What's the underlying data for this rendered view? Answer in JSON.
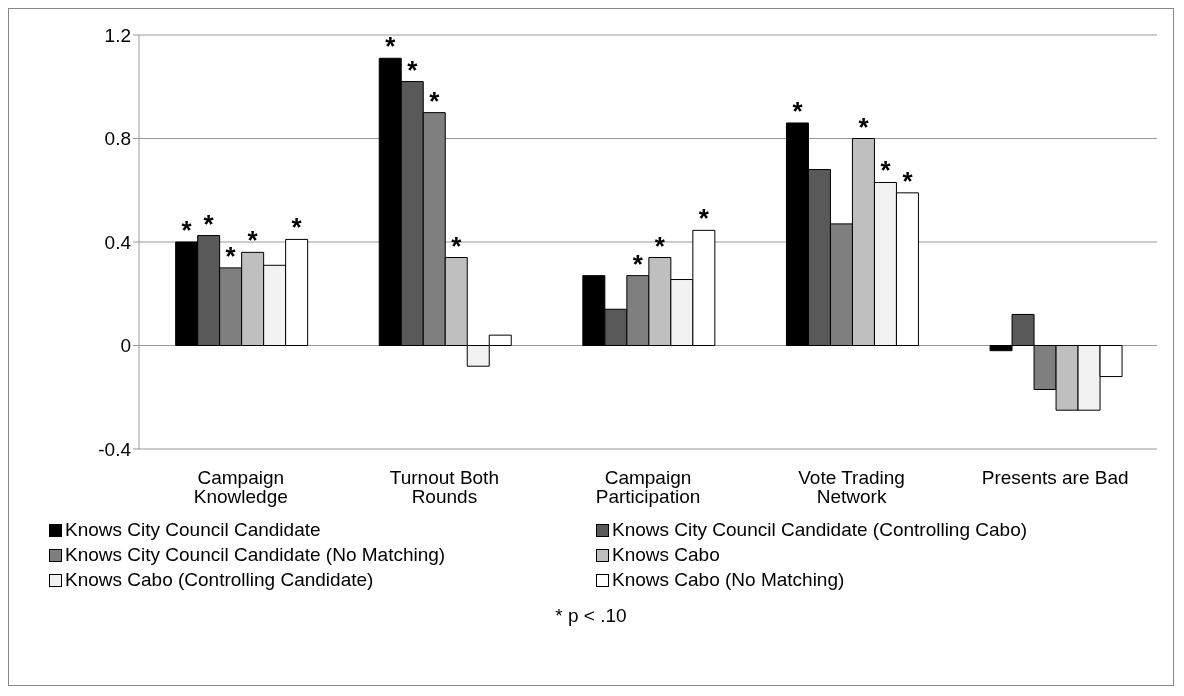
{
  "chart_data": {
    "type": "bar",
    "categories": [
      "Campaign Knowledge",
      "Turnout Both Rounds",
      "Campaign Participation",
      "Vote Trading Network",
      "Presents are Bad"
    ],
    "series": [
      {
        "name": "Knows City Council Candidate",
        "color": "#000000",
        "values": [
          0.4,
          1.11,
          0.27,
          0.86,
          -0.02
        ],
        "value_labels": [
          "*",
          "*",
          null,
          "*",
          null
        ]
      },
      {
        "name": "Knows City Council Candidate (Controlling Cabo)",
        "color": "#595959",
        "values": [
          0.425,
          1.02,
          0.14,
          0.68,
          0.12
        ],
        "value_labels": [
          "*",
          "*",
          null,
          null,
          null
        ]
      },
      {
        "name": "Knows City Council Candidate (No Matching)",
        "color": "#7f7f7f",
        "values": [
          0.3,
          0.9,
          0.27,
          0.47,
          -0.17
        ],
        "value_labels": [
          "*",
          "*",
          "*",
          null,
          null
        ]
      },
      {
        "name": "Knows Cabo",
        "color": "#bfbfbf",
        "values": [
          0.36,
          0.34,
          0.34,
          0.8,
          -0.25
        ],
        "value_labels": [
          "*",
          "*",
          "*",
          "*",
          null
        ]
      },
      {
        "name": "Knows Cabo (Controlling Candidate)",
        "color": "#f2f2f2",
        "values": [
          0.31,
          -0.08,
          0.255,
          0.63,
          -0.25
        ],
        "value_labels": [
          null,
          null,
          null,
          "*",
          null
        ]
      },
      {
        "name": "Knows Cabo (No Matching)",
        "color": "#ffffff",
        "values": [
          0.41,
          0.04,
          0.445,
          0.59,
          -0.12
        ],
        "value_labels": [
          "*",
          null,
          "*",
          "*",
          null
        ]
      }
    ],
    "ylim": [
      -0.4,
      1.2
    ],
    "yticks": [
      -0.4,
      0,
      0.4,
      0.8,
      1.2
    ],
    "grid": "y",
    "legend": "bottom",
    "annotations": [
      "* p < .10"
    ]
  }
}
